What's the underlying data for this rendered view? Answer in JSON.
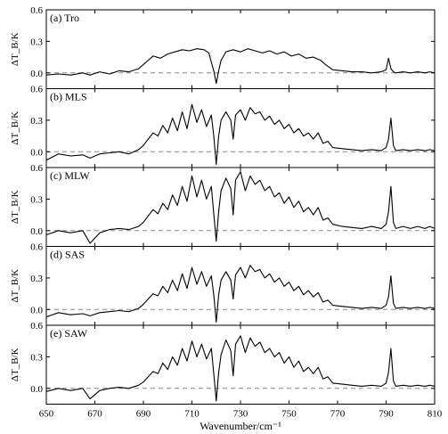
{
  "chart_data": {
    "type": "line",
    "xlabel": "Wavenumber/cm⁻¹",
    "ylabel": "ΔT_B/K",
    "xlim": [
      650,
      810
    ],
    "ylim": [
      -0.15,
      0.6
    ],
    "xticks": [
      650,
      670,
      690,
      710,
      730,
      750,
      770,
      790,
      810
    ],
    "xtick_labels": [
      "650",
      "670",
      "690",
      "710",
      "730",
      "750",
      "770",
      "790",
      "810"
    ],
    "yticks": [
      0.0,
      0.3,
      0.6
    ],
    "ytick_labels": [
      "0.0",
      "0.3",
      "0.6"
    ],
    "reference_line": {
      "y": 0.0,
      "style": "dashed",
      "color": "#888888"
    },
    "line_color": "#000000",
    "panels": [
      {
        "title": "(a) Tro",
        "series": {
          "x": [
            650,
            655,
            660,
            665,
            668,
            672,
            676,
            680,
            684,
            688,
            690,
            692,
            694,
            697,
            700,
            703,
            706,
            709,
            712,
            715,
            717,
            718,
            719,
            720,
            721,
            722,
            724,
            727,
            730,
            733,
            736,
            739,
            742,
            745,
            748,
            751,
            754,
            757,
            760,
            763,
            765,
            768,
            772,
            776,
            780,
            784,
            788,
            790,
            791,
            792,
            793,
            794,
            797,
            800,
            803,
            806,
            808,
            810
          ],
          "y": [
            -0.02,
            -0.01,
            -0.02,
            0.0,
            -0.02,
            0.01,
            -0.01,
            0.02,
            0.01,
            0.04,
            0.08,
            0.12,
            0.16,
            0.14,
            0.18,
            0.2,
            0.22,
            0.21,
            0.23,
            0.22,
            0.19,
            0.1,
            0.02,
            -0.1,
            0.02,
            0.12,
            0.2,
            0.22,
            0.2,
            0.23,
            0.21,
            0.19,
            0.21,
            0.18,
            0.2,
            0.16,
            0.18,
            0.14,
            0.15,
            0.12,
            0.08,
            0.03,
            0.02,
            0.01,
            0.01,
            0.0,
            0.01,
            0.03,
            0.14,
            0.04,
            0.01,
            0.0,
            0.01,
            0.0,
            0.01,
            0.0,
            0.01,
            0.0
          ]
        }
      },
      {
        "title": "(b) MLS",
        "series": {
          "x": [
            650,
            655,
            660,
            665,
            668,
            672,
            676,
            680,
            684,
            688,
            690,
            692,
            694,
            696,
            698,
            700,
            702,
            704,
            706,
            708,
            710,
            712,
            714,
            716,
            718,
            719,
            720,
            721,
            722,
            724,
            726,
            727,
            728,
            730,
            732,
            734,
            736,
            738,
            740,
            742,
            744,
            746,
            748,
            750,
            752,
            754,
            756,
            758,
            760,
            762,
            764,
            766,
            768,
            772,
            776,
            780,
            784,
            788,
            790,
            791,
            792,
            793,
            794,
            797,
            800,
            803,
            806,
            808,
            810
          ],
          "y": [
            -0.08,
            -0.02,
            -0.04,
            -0.03,
            -0.06,
            -0.02,
            -0.01,
            0.0,
            -0.02,
            0.02,
            0.06,
            0.12,
            0.18,
            0.15,
            0.25,
            0.18,
            0.32,
            0.2,
            0.38,
            0.22,
            0.45,
            0.28,
            0.4,
            0.24,
            0.35,
            0.15,
            -0.12,
            0.15,
            0.3,
            0.38,
            0.3,
            0.12,
            0.35,
            0.4,
            0.3,
            0.42,
            0.36,
            0.38,
            0.3,
            0.34,
            0.26,
            0.3,
            0.22,
            0.26,
            0.18,
            0.22,
            0.15,
            0.18,
            0.12,
            0.18,
            0.08,
            0.1,
            0.04,
            0.03,
            0.02,
            0.01,
            0.02,
            0.01,
            0.04,
            0.12,
            0.32,
            0.06,
            0.01,
            0.02,
            0.01,
            0.02,
            0.01,
            0.02,
            0.01
          ]
        }
      },
      {
        "title": "(c) MLW",
        "series": {
          "x": [
            650,
            655,
            660,
            665,
            668,
            672,
            676,
            680,
            684,
            688,
            690,
            692,
            694,
            696,
            698,
            700,
            702,
            704,
            706,
            708,
            710,
            712,
            714,
            716,
            718,
            719,
            720,
            721,
            722,
            724,
            726,
            727,
            728,
            730,
            732,
            734,
            736,
            738,
            740,
            742,
            744,
            746,
            748,
            750,
            752,
            754,
            756,
            758,
            760,
            762,
            764,
            766,
            768,
            772,
            776,
            780,
            784,
            788,
            790,
            791,
            792,
            793,
            794,
            797,
            800,
            803,
            806,
            808,
            810
          ],
          "y": [
            -0.04,
            0.0,
            -0.02,
            0.0,
            -0.12,
            -0.02,
            0.01,
            0.02,
            0.01,
            0.04,
            0.08,
            0.14,
            0.2,
            0.16,
            0.26,
            0.2,
            0.34,
            0.24,
            0.42,
            0.28,
            0.52,
            0.32,
            0.48,
            0.3,
            0.42,
            0.16,
            -0.1,
            0.18,
            0.38,
            0.5,
            0.4,
            0.15,
            0.48,
            0.56,
            0.38,
            0.52,
            0.44,
            0.48,
            0.38,
            0.42,
            0.32,
            0.36,
            0.26,
            0.32,
            0.22,
            0.28,
            0.18,
            0.22,
            0.15,
            0.22,
            0.1,
            0.12,
            0.06,
            0.04,
            0.03,
            0.02,
            0.04,
            0.02,
            0.06,
            0.18,
            0.42,
            0.08,
            0.02,
            0.04,
            0.02,
            0.04,
            0.02,
            0.04,
            0.02
          ]
        }
      },
      {
        "title": "(d) SAS",
        "series": {
          "x": [
            650,
            655,
            660,
            665,
            668,
            672,
            676,
            680,
            684,
            688,
            690,
            692,
            694,
            696,
            698,
            700,
            702,
            704,
            706,
            708,
            710,
            712,
            714,
            716,
            718,
            719,
            720,
            721,
            722,
            724,
            726,
            727,
            728,
            730,
            732,
            734,
            736,
            738,
            740,
            742,
            744,
            746,
            748,
            750,
            752,
            754,
            756,
            758,
            760,
            762,
            764,
            766,
            768,
            772,
            776,
            780,
            784,
            788,
            790,
            791,
            792,
            793,
            794,
            797,
            800,
            803,
            806,
            808,
            810
          ],
          "y": [
            -0.07,
            -0.03,
            -0.05,
            -0.04,
            -0.06,
            -0.03,
            -0.02,
            -0.01,
            -0.02,
            0.01,
            0.05,
            0.1,
            0.15,
            0.13,
            0.22,
            0.16,
            0.28,
            0.18,
            0.34,
            0.2,
            0.4,
            0.24,
            0.36,
            0.22,
            0.32,
            0.14,
            -0.12,
            0.14,
            0.28,
            0.36,
            0.28,
            0.1,
            0.33,
            0.4,
            0.3,
            0.42,
            0.36,
            0.38,
            0.3,
            0.34,
            0.26,
            0.3,
            0.22,
            0.26,
            0.18,
            0.22,
            0.14,
            0.18,
            0.12,
            0.16,
            0.07,
            0.09,
            0.04,
            0.03,
            0.02,
            0.01,
            0.02,
            0.01,
            0.04,
            0.12,
            0.32,
            0.06,
            0.01,
            0.02,
            0.01,
            0.02,
            0.01,
            0.02,
            0.01
          ]
        }
      },
      {
        "title": "(e) SAW",
        "series": {
          "x": [
            650,
            655,
            660,
            665,
            668,
            672,
            676,
            680,
            684,
            688,
            690,
            692,
            694,
            696,
            698,
            700,
            702,
            704,
            706,
            708,
            710,
            712,
            714,
            716,
            718,
            719,
            720,
            721,
            722,
            724,
            726,
            727,
            728,
            730,
            732,
            734,
            736,
            738,
            740,
            742,
            744,
            746,
            748,
            750,
            752,
            754,
            756,
            758,
            760,
            762,
            764,
            766,
            768,
            772,
            776,
            780,
            784,
            788,
            790,
            791,
            792,
            793,
            794,
            797,
            800,
            803,
            806,
            808,
            810
          ],
          "y": [
            -0.03,
            0.0,
            -0.02,
            0.0,
            -0.1,
            -0.02,
            0.0,
            0.01,
            0.0,
            0.03,
            0.06,
            0.11,
            0.16,
            0.14,
            0.24,
            0.18,
            0.3,
            0.22,
            0.38,
            0.26,
            0.45,
            0.3,
            0.42,
            0.28,
            0.38,
            0.14,
            -0.12,
            0.15,
            0.32,
            0.46,
            0.36,
            0.12,
            0.42,
            0.5,
            0.34,
            0.48,
            0.4,
            0.44,
            0.34,
            0.38,
            0.3,
            0.34,
            0.24,
            0.3,
            0.2,
            0.26,
            0.16,
            0.2,
            0.14,
            0.2,
            0.09,
            0.11,
            0.05,
            0.04,
            0.03,
            0.02,
            0.03,
            0.02,
            0.05,
            0.15,
            0.38,
            0.07,
            0.02,
            0.03,
            0.02,
            0.03,
            0.02,
            0.03,
            0.02
          ]
        }
      }
    ]
  }
}
